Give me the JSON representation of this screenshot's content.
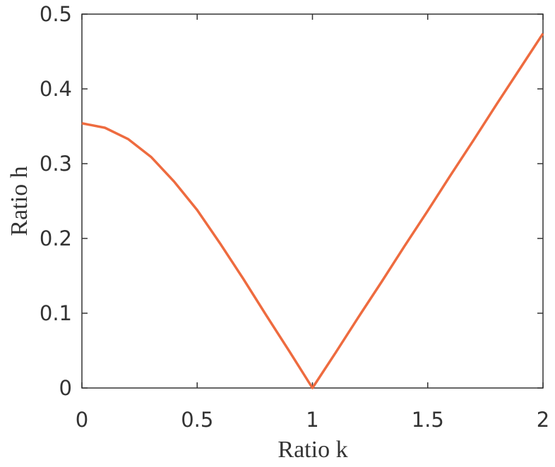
{
  "chart_data": {
    "type": "line",
    "xlabel": "Ratio k",
    "ylabel": "Ratio h",
    "x": [
      0,
      0.1,
      0.2,
      0.3,
      0.4,
      0.5,
      0.6,
      0.7,
      0.8,
      0.9,
      1,
      1.1,
      1.2,
      1.3,
      1.4,
      1.5,
      1.6,
      1.7,
      1.8,
      1.9,
      2
    ],
    "series": [
      {
        "color": "#ee6b3f",
        "values": [
          0.354,
          0.348,
          0.333,
          0.309,
          0.276,
          0.238,
          0.193,
          0.146,
          0.097,
          0.049,
          0,
          0.047,
          0.095,
          0.142,
          0.19,
          0.237,
          0.285,
          0.332,
          0.38,
          0.427,
          0.474
        ]
      }
    ],
    "xlim": [
      0,
      2
    ],
    "xticks": [
      0,
      0.5,
      1,
      1.5,
      2
    ],
    "ylim": [
      0,
      0.5
    ],
    "yticks": [
      0,
      0.1,
      0.2,
      0.3,
      0.4,
      0.5
    ],
    "grid": false
  }
}
